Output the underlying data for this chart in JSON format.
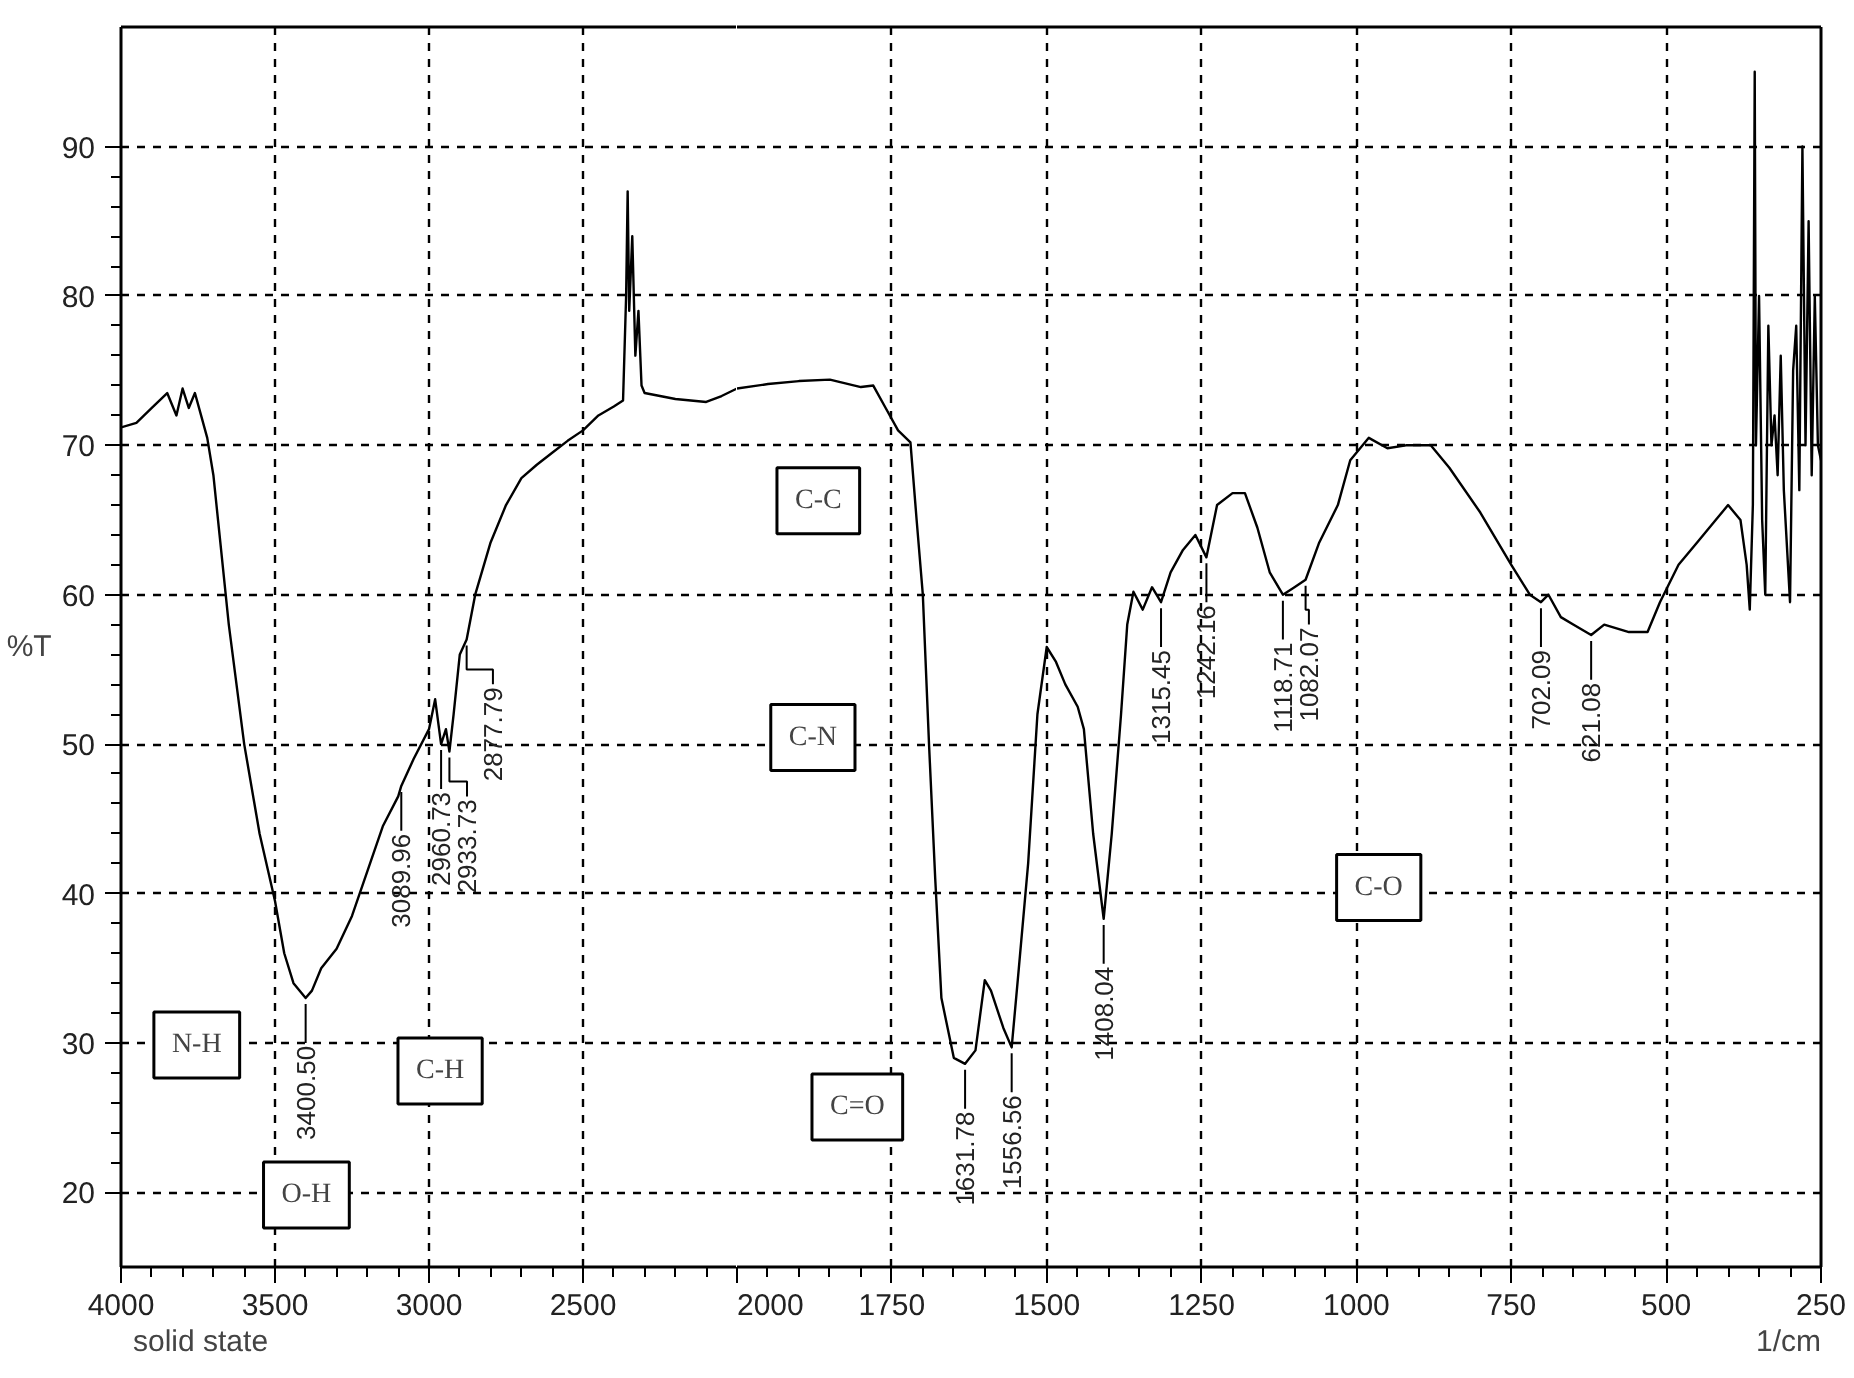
{
  "chart_data": [
    {
      "type": "line",
      "ylabel": "%T",
      "grid": true,
      "marker": "none",
      "line_style": "solid",
      "xlim": [
        4000,
        2000
      ],
      "ylim": [
        15,
        98
      ],
      "xticks": [
        4000,
        3500,
        3000,
        2500,
        {
          "value": 2000,
          "label": null
        }
      ],
      "yticks": [
        20,
        30,
        40,
        50,
        60,
        70,
        80,
        90
      ],
      "series": [
        {
          "color": "#000000",
          "x": [
            4000,
            3950,
            3900,
            3850,
            3820,
            3800,
            3780,
            3760,
            3740,
            3720,
            3700,
            3680,
            3650,
            3600,
            3550,
            3500,
            3470,
            3440,
            3400.5,
            3380,
            3350,
            3300,
            3250,
            3200,
            3150,
            3100,
            3089.96,
            3050,
            3000,
            2980,
            2960.73,
            2945,
            2933.73,
            2920,
            2900,
            2877.79,
            2850,
            2800,
            2750,
            2700,
            2650,
            2600,
            2550,
            2500,
            2450,
            2400,
            2370,
            2360,
            2355,
            2350,
            2340,
            2330,
            2320,
            2310,
            2300,
            2200,
            2100,
            2050,
            2000
          ],
          "values": [
            71.2,
            71.5,
            72.5,
            73.5,
            72,
            73.8,
            72.5,
            73.5,
            72,
            70.5,
            68,
            64,
            58,
            50,
            44,
            39.5,
            36,
            34,
            33,
            33.5,
            35,
            36.3,
            38.5,
            41.5,
            44.5,
            46.5,
            47.2,
            49,
            51,
            53,
            50,
            51,
            49.5,
            52,
            56,
            57,
            60,
            63.5,
            66,
            67.8,
            68.7,
            69.5,
            70.3,
            71,
            72,
            72.6,
            73,
            80,
            87,
            79,
            84,
            76,
            79,
            74,
            73.5,
            73.1,
            72.9,
            73.3,
            73.8
          ]
        }
      ],
      "annotations": [
        "N-H",
        "O-H",
        "C-H",
        {
          "text": "3400.50",
          "x": 3400.5,
          "y": 33
        },
        {
          "text": "3089.96",
          "x": 3089.96,
          "y": 47.2
        },
        {
          "text": "2960.73",
          "x": 2960.73,
          "y": 50
        },
        {
          "text": "2933.73",
          "x": 2933.73,
          "y": 49.5
        },
        {
          "text": "2877.79",
          "x": 2877.79,
          "y": 57
        },
        "solid state"
      ]
    },
    {
      "type": "line",
      "xlabel": "1/cm",
      "grid": true,
      "marker": "none",
      "line_style": "solid",
      "tick_labels": "x",
      "xlim": [
        2000,
        250
      ],
      "ylim": [
        15,
        98
      ],
      "xticks": [
        2000,
        1750,
        1500,
        1250,
        1000,
        750,
        500,
        250
      ],
      "yticks": [
        20,
        30,
        40,
        50,
        60,
        70,
        80,
        90
      ],
      "series": [
        {
          "color": "#000000",
          "x": [
            2000,
            1950,
            1900,
            1850,
            1800,
            1780,
            1760,
            1740,
            1720,
            1710,
            1700,
            1690,
            1680,
            1670,
            1650,
            1631.78,
            1615,
            1600,
            1590,
            1570,
            1556.56,
            1545,
            1530,
            1515,
            1500,
            1485,
            1470,
            1450,
            1440,
            1425,
            1408.04,
            1395,
            1380,
            1370,
            1360,
            1345,
            1330,
            1315.45,
            1300,
            1280,
            1260,
            1242.16,
            1225,
            1200,
            1180,
            1160,
            1140,
            1118.71,
            1100,
            1082.07,
            1060,
            1030,
            1010,
            980,
            950,
            920,
            880,
            850,
            800,
            750,
            720,
            702.09,
            690,
            670,
            650,
            621.08,
            600,
            560,
            530,
            510,
            480,
            450,
            420,
            400,
            380,
            370,
            365,
            360,
            357,
            355,
            350,
            345,
            340,
            335,
            330,
            325,
            320,
            315,
            310,
            300,
            295,
            290,
            285,
            280,
            275,
            270,
            265,
            260,
            255,
            250
          ],
          "values": [
            73.8,
            74.1,
            74.3,
            74.4,
            73.9,
            74,
            72.5,
            71,
            70.2,
            65,
            60,
            50,
            41,
            33,
            29,
            28.6,
            29.5,
            34.2,
            33.5,
            31,
            29.7,
            35,
            42,
            52,
            56.5,
            55.5,
            54,
            52.5,
            51,
            44,
            38.3,
            44,
            52,
            58,
            60.2,
            59,
            60.5,
            59.5,
            61.5,
            63,
            64,
            62.5,
            66,
            66.8,
            66.8,
            64.5,
            61.5,
            60,
            60.5,
            61,
            63.5,
            66,
            69,
            70.5,
            69.8,
            70,
            70,
            68.5,
            65.5,
            62,
            60,
            59.5,
            60,
            58.5,
            58,
            57.3,
            58,
            57.5,
            57.5,
            59.5,
            62,
            63.5,
            65,
            66,
            65,
            62,
            59,
            66,
            95,
            70,
            80,
            65,
            60,
            78,
            70,
            72,
            68,
            76,
            67,
            59.5,
            75,
            78,
            67,
            90,
            70,
            85,
            68,
            80,
            70,
            69
          ]
        }
      ],
      "annotations": [
        "C-C",
        "C-N",
        "C=O",
        "C-O",
        {
          "text": "1631.78",
          "x": 1631.78,
          "y": 28.6
        },
        {
          "text": "1556.56",
          "x": 1556.56,
          "y": 29.7
        },
        {
          "text": "1408.04",
          "x": 1408.04,
          "y": 38.3
        },
        {
          "text": "1315.45",
          "x": 1315.45,
          "y": 59.5
        },
        {
          "text": "1242.16",
          "x": 1242.16,
          "y": 62.5
        },
        {
          "text": "1118.71",
          "x": 1118.71,
          "y": 60
        },
        {
          "text": "1082.07",
          "x": 1082.07,
          "y": 61
        },
        {
          "text": "702.09",
          "x": 702.09,
          "y": 59.5
        },
        {
          "text": "621.08",
          "x": 621.08,
          "y": 57.3
        }
      ]
    }
  ]
}
